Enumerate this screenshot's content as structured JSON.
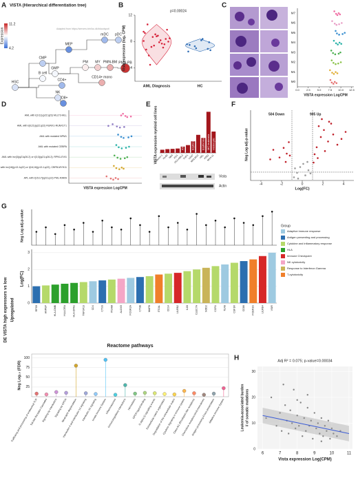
{
  "panel_a": {
    "letter": "A",
    "title": "VISTA (Hierarchical differentiation tree)",
    "legend_title": "Expression",
    "legend_max": 11.2,
    "legend_min": 4.2,
    "source": "Adapted from https://servers.binf.ku.dk/bloodspot/",
    "nodes": [
      {
        "label": "HSC",
        "value": 7
      },
      {
        "label": "CMP",
        "value": 6.5
      },
      {
        "label": "GMP",
        "value": 7.5
      },
      {
        "label": "MEP",
        "value": 5
      },
      {
        "label": "B cell",
        "value": 7.5
      },
      {
        "label": "CD4+",
        "value": 6
      },
      {
        "label": "CD8+",
        "value": 5
      },
      {
        "label": "NK",
        "value": 7
      },
      {
        "label": "mDC",
        "value": 6
      },
      {
        "label": "pDC",
        "value": 6.5
      },
      {
        "label": "PM",
        "value": 8
      },
      {
        "label": "MY",
        "value": 8.5
      },
      {
        "label": "PMN-BM",
        "value": 9
      },
      {
        "label": "PMN-PB",
        "value": 11
      },
      {
        "label": "CD14+ mono",
        "value": 9
      }
    ]
  },
  "panel_b": {
    "letter": "B",
    "annotation": "p=0.00024",
    "ylabel": "Vista expression (log₂ CPM)",
    "categories": [
      "AML Diagnosis",
      "HC"
    ],
    "colors": [
      "#d7263d",
      "#2f6db5"
    ],
    "values": [
      [
        8.1,
        7.6,
        8.9,
        7.2,
        9.3,
        8.4,
        7.9,
        8.7,
        6.8,
        9.8,
        8.2,
        7.4,
        10.6,
        8.0,
        7.7,
        9.1,
        5.9,
        8.5,
        7.1,
        8.8,
        4.5,
        9.5
      ],
      [
        7.6,
        6.9,
        8.2,
        7.3,
        6.5,
        7.9,
        8.4,
        7.0,
        7.5,
        6.7
      ]
    ],
    "ylim": [
      2,
      12
    ],
    "yticks": [
      4,
      8,
      12
    ]
  },
  "panel_c": {
    "letter": "C",
    "xlabel": "VISTA expression LogCPM",
    "categories": [
      "M7",
      "M6",
      "M5",
      "M4",
      "M3",
      "M2",
      "M1",
      "M0"
    ],
    "colors": [
      "#f06fa4",
      "#e9a0c8",
      "#3a8fd0",
      "#2cb3a8",
      "#4caf50",
      "#8bc34a",
      "#e2b13c",
      "#e57373"
    ],
    "values": [
      [
        8.5,
        9.2,
        9.8,
        8.9,
        9.5
      ],
      [
        8.0,
        9.0,
        9.6,
        8.6,
        10.2
      ],
      [
        8.8,
        9.6,
        10.4,
        9.1,
        10.9
      ],
      [
        8.4,
        9.3,
        10.1,
        8.9,
        9.7
      ],
      [
        7.8,
        8.7,
        9.5,
        8.2,
        9.9
      ],
      [
        7.9,
        8.8,
        9.4,
        8.3,
        10.0
      ],
      [
        7.5,
        8.4,
        9.2,
        8.0,
        8.8
      ],
      [
        7.6,
        8.3,
        9.0,
        7.9,
        8.6
      ]
    ],
    "xlim": [
      0,
      13
    ],
    "xticks": [
      {
        "value": 0,
        "label": "0.0"
      },
      {
        "value": 2.5,
        "label": "2.5"
      },
      {
        "value": 5,
        "label": "5.0"
      },
      {
        "value": 7.5,
        "label": "7.5"
      },
      {
        "value": 10,
        "label": "10.0"
      },
      {
        "value": 12.5,
        "label": "12.5"
      }
    ]
  },
  "panel_d": {
    "letter": "D",
    "xlabel": "VISTA expression LogCPM",
    "categories": [
      "AML with t(9;11)(p22;q23) MLLT3-MLL",
      "AML with t(8;21)(q22;q22) RUNX1-RUNX1T1",
      "AML with mutated NPM1",
      "AML with mutated CEBPA",
      "AML with inv(3)(q21q26.2) or t(3;3)(q21;q26.2); RPN1-EVI1",
      "AML with inv(16)(p13.1q22) or t(16;16)(p13.1;q22); CBFB-MYH11",
      "APL with t(15;17)(q22;q12) PML-RARA"
    ],
    "colors": [
      "#f06fa4",
      "#8e7cc3",
      "#3a8fd0",
      "#2cb3a8",
      "#4caf50",
      "#d4a72c",
      "#e57373"
    ],
    "values": [
      [
        8.9,
        9.6,
        10.2,
        9.3,
        8.6
      ],
      [
        7.2,
        8.4,
        9.1,
        7.9,
        6.5
      ],
      [
        8.1,
        9.0,
        9.8,
        8.6,
        10.3
      ],
      [
        7.8,
        8.7,
        9.4,
        8.2,
        9.9
      ],
      [
        7.5,
        8.5,
        9.2,
        8.0,
        9.6
      ],
      [
        7.4,
        8.3,
        9.0,
        7.8,
        8.7
      ],
      [
        6.2,
        7.3,
        8.1,
        6.9,
        7.7
      ]
    ],
    "xlim": [
      0,
      12
    ]
  },
  "panel_e": {
    "letter": "E",
    "title": "VISTA expression myeloid cell lines",
    "categories": [
      "Kasumi-1",
      "HL60",
      "NB4",
      "KG1",
      "OCI-AML3",
      "THP1",
      "U937",
      "MOLM13",
      "HEL",
      "K562",
      "MV4-11"
    ],
    "values": [
      2.6,
      3.1,
      3.3,
      3.6,
      5.2,
      6.4,
      9.5,
      14.8,
      12.3,
      33.7,
      17.5
    ],
    "color": "#a3161c",
    "ylim": [
      0,
      35
    ],
    "groups": [
      {
        "label": "AML",
        "index": 4
      },
      {
        "label": "Erythroleukemia",
        "index": 6
      },
      {
        "label": "Erythroleukemia",
        "index": 8
      },
      {
        "label": "MC leukemia",
        "index": 9
      },
      {
        "label": "Histiocytic",
        "index": 10
      }
    ],
    "blot": [
      "Vista",
      "Actin"
    ]
  },
  "panel_f": {
    "letter": "F",
    "down_label": "504 Down",
    "up_label": "905 Up",
    "xlabel": "Log(FC)",
    "ylabel": "Neg Log adj-p-value",
    "xlim": [
      -5,
      5
    ],
    "ylim": [
      0,
      11
    ],
    "xticks": [
      -4,
      -2,
      0,
      2,
      4
    ],
    "fc_thresholds": [
      -1,
      1
    ],
    "p_threshold": 1.3,
    "series": [
      {
        "color": "#c0202a",
        "x": [
          -1.5,
          -1.8,
          -2.2,
          -1.3,
          -2.8,
          -1.6,
          -3.1,
          -1.2,
          1.4,
          1.8,
          2.1,
          1.6,
          2.5,
          3.0,
          1.2,
          2.8,
          1.9,
          3.4,
          2.2,
          1.5,
          3.8,
          4.2,
          1.1,
          2.6
        ],
        "y": [
          4.2,
          5.1,
          3.6,
          6.0,
          4.8,
          2.9,
          3.3,
          3.9,
          5.2,
          6.8,
          7.9,
          8.5,
          6.1,
          7.2,
          4.1,
          8.9,
          9.6,
          5.6,
          4.6,
          3.5,
          6.5,
          7.6,
          2.8,
          9.2
        ]
      },
      {
        "color": "#9a9a9a",
        "x": [
          -0.5,
          0.3,
          -0.2,
          0.6,
          -0.8,
          0.1,
          0.8,
          -0.4,
          0.5,
          -0.7
        ],
        "y": [
          1.2,
          0.8,
          2.1,
          1.6,
          0.5,
          2.6,
          1.1,
          0.3,
          2.9,
          1.9
        ]
      }
    ]
  },
  "panel_g": {
    "letter": "G",
    "side_title": "DE VISTA high expressors vs low",
    "side_subtitle": "Upregulated",
    "pval_label": "Neg Log adj-p-value",
    "fc_label": "Log(FC)",
    "legend_title": "Group",
    "groups": [
      {
        "name": "Adaptive immune response",
        "color": "#9ecae1"
      },
      {
        "name": "Antigen presenting and processing",
        "color": "#2c6fb0"
      },
      {
        "name": "Cytokine and inflammatory response",
        "color": "#b5d96a"
      },
      {
        "name": "HLA",
        "color": "#2ca02c"
      },
      {
        "name": "Immune Checkpoint",
        "color": "#d62728"
      },
      {
        "name": "NK cytotoxicity",
        "color": "#f4a6c6"
      },
      {
        "name": "Response to Interferon Gamma",
        "color": "#c9b458"
      },
      {
        "name": "T-cytotoxicity",
        "color": "#f07f2a"
      }
    ],
    "genes": [
      "RPS9",
      "ANPEP",
      "HLA-DMB",
      "HLA-DRA",
      "HLA-DPA1",
      "TNFSF13",
      "CD4",
      "CTSS",
      "ITGAM",
      "ALOX5",
      "FCGR2A",
      "CTSB",
      "MAFB",
      "ITGAL",
      "CD14",
      "LILRB2",
      "IL1B",
      "CLEC7A",
      "NOD2",
      "CCR1",
      "TLR8",
      "CSF1R",
      "CD86",
      "FCER1G",
      "LILRB4",
      "VSIR"
    ],
    "group_index": [
      1,
      2,
      3,
      3,
      3,
      2,
      0,
      1,
      2,
      5,
      0,
      1,
      2,
      7,
      2,
      4,
      2,
      2,
      6,
      2,
      0,
      2,
      1,
      7,
      4,
      0
    ],
    "logfc": [
      1.0,
      1.05,
      1.1,
      1.15,
      1.2,
      1.25,
      1.3,
      1.35,
      1.4,
      1.45,
      1.5,
      1.55,
      1.6,
      1.7,
      1.75,
      1.8,
      1.9,
      2.0,
      2.1,
      2.2,
      2.3,
      2.4,
      2.5,
      2.6,
      2.8,
      3.0
    ],
    "neglogp": [
      6,
      8,
      5,
      9,
      7,
      10,
      6,
      11,
      8,
      7,
      12,
      9,
      6,
      13,
      8,
      10,
      7,
      14,
      9,
      11,
      8,
      12,
      10,
      9,
      13,
      15
    ],
    "ylim": [
      0,
      3.2
    ],
    "yticks": [
      0,
      1,
      2,
      3
    ],
    "plim": [
      0,
      16
    ],
    "reactome_title": "Reactome pathways",
    "fdr_label": "Neg Log₁₀ (FDR)",
    "fdr_ylim": [
      0,
      110
    ],
    "fdr_yticks": [
      25,
      50,
      75,
      100
    ],
    "pathways": [
      "Trafficking and processing of endosomal TLR",
      "Toll-like Receptor Cascades",
      "Signaling by Interleukins",
      "Signaling by GPCR",
      "Neutrophil degranulation",
      "Interleukin-4 and Interleukin-13 signaling",
      "Interleukin-10 signaling",
      "Innate Immune System",
      "Inflammasomes",
      "Immunoregulatory interactions",
      "Hemostasis",
      "GPCR ligand binding",
      "G alpha (i) signalling events",
      "Extracellular matrix organization",
      "Degradation of the extracellular matrix",
      "Cytokine Signaling in Immune system",
      "Class A/1 (Rhodopsin-like receptors)",
      "Chemokine receptors bind chemokines",
      "Antigen processing-Cross presentation",
      "Adaptive Immune System"
    ],
    "fdr": [
      8,
      6,
      12,
      10,
      80,
      9,
      7,
      95,
      5,
      30,
      8,
      10,
      9,
      7,
      6,
      15,
      9,
      5,
      8,
      22
    ],
    "fdr_colors": [
      "#e57373",
      "#f48fb1",
      "#ce93d8",
      "#b39ddb",
      "#d4a72c",
      "#9fa8da",
      "#90caf9",
      "#4fc3f7",
      "#4dd0e1",
      "#4db6ac",
      "#81c784",
      "#aed581",
      "#dce775",
      "#fff176",
      "#ffd54f",
      "#ffb74d",
      "#ff8a65",
      "#a1887f",
      "#90a4ae",
      "#f06292"
    ]
  },
  "panel_h": {
    "letter": "H",
    "annotation": "Adj R² = 0.075; p-value=0.00034",
    "xlabel": "Vista expression Log(CPM)",
    "ylabel": "Leukemia-associated burden",
    "ylabel2": "# of somatic mutations",
    "xlim": [
      5.7,
      11.2
    ],
    "ylim": [
      0,
      32
    ],
    "xticks": [
      6,
      7,
      8,
      9,
      10,
      11
    ],
    "yticks": [
      0,
      10,
      20,
      30
    ],
    "x": [
      6.2,
      6.5,
      6.8,
      7.0,
      7.1,
      7.3,
      7.4,
      7.5,
      7.6,
      7.7,
      7.8,
      7.9,
      8.0,
      8.1,
      8.2,
      8.3,
      8.4,
      8.5,
      8.6,
      8.7,
      8.8,
      8.9,
      9.0,
      9.1,
      9.2,
      9.3,
      9.4,
      9.5,
      9.6,
      9.7,
      9.8,
      9.9,
      10.0,
      10.1,
      10.3,
      10.5,
      7.2,
      8.0,
      8.6,
      9.4
    ],
    "y": [
      12,
      20,
      9,
      14,
      7,
      17,
      11,
      6,
      15,
      10,
      23,
      8,
      13,
      9,
      18,
      5,
      12,
      7,
      16,
      9,
      11,
      4,
      14,
      8,
      10,
      6,
      12,
      5,
      9,
      7,
      11,
      4,
      8,
      6,
      5,
      7,
      25,
      19,
      21,
      3
    ],
    "fit": {
      "x": [
        6,
        11
      ],
      "y": [
        13,
        6
      ]
    }
  }
}
